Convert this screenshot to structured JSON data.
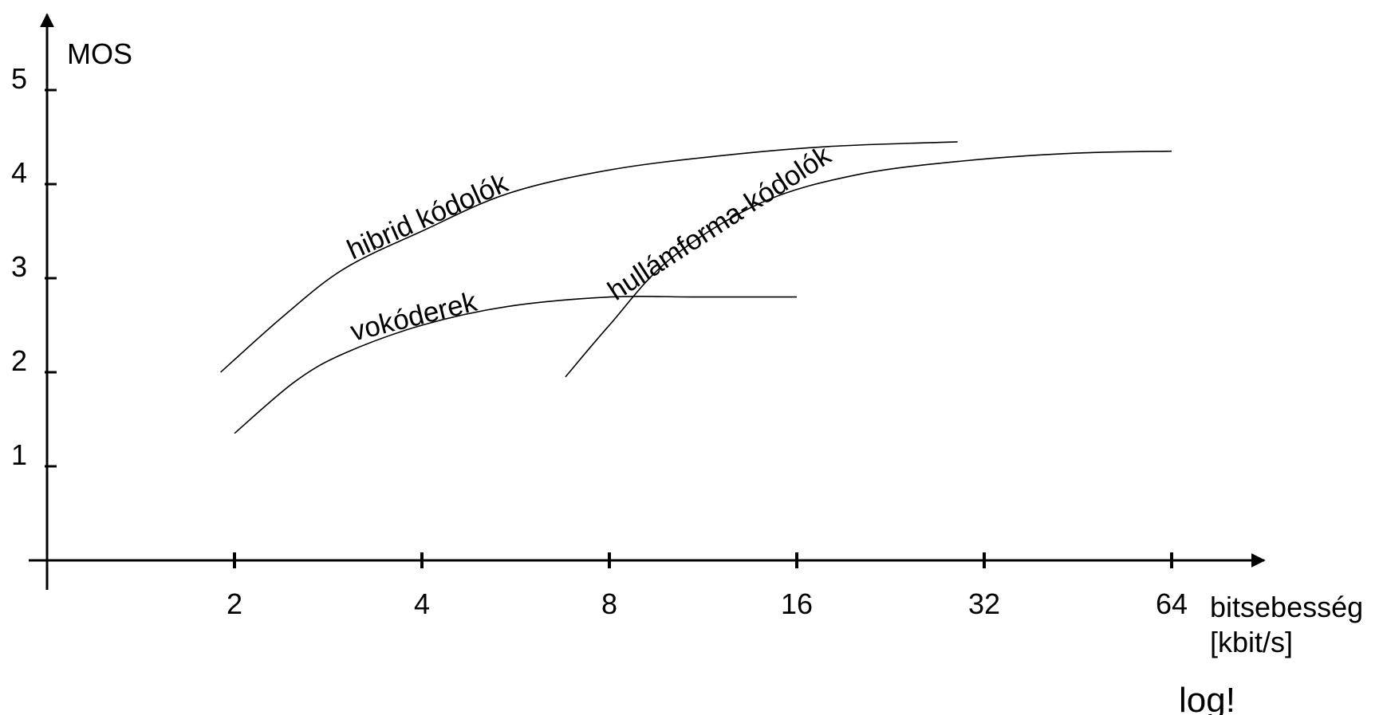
{
  "chart_data": {
    "type": "line",
    "ylabel": "MOS",
    "xlabel_line1": "bitsebesség",
    "xlabel_line2": "[kbit/s]",
    "note": "log!",
    "x_scale": "log2",
    "x_ticks": [
      2,
      4,
      8,
      16,
      32,
      64
    ],
    "y_ticks": [
      1,
      2,
      3,
      4,
      5
    ],
    "xlim": [
      1,
      90
    ],
    "ylim": [
      0,
      5.6
    ],
    "grid": false,
    "colors": {
      "line": "#000000",
      "axis": "#000000"
    },
    "series": [
      {
        "name": "hibrid kódolók",
        "x": [
          1.9,
          2.4,
          3.0,
          4.0,
          5.5,
          8.0,
          12.0,
          18.0,
          29.0
        ],
        "y": [
          2.0,
          2.6,
          3.1,
          3.5,
          3.9,
          4.15,
          4.3,
          4.4,
          4.45
        ]
      },
      {
        "name": "vokóderek",
        "x": [
          2.0,
          2.5,
          3.0,
          4.0,
          5.5,
          8.0,
          11.0,
          16.0
        ],
        "y": [
          1.35,
          1.9,
          2.2,
          2.5,
          2.7,
          2.8,
          2.8,
          2.8
        ]
      },
      {
        "name": "hullámforma-kódolók",
        "x": [
          6.8,
          8.0,
          10.0,
          14.0,
          20.0,
          30.0,
          45.0,
          64.0
        ],
        "y": [
          1.95,
          2.5,
          3.2,
          3.8,
          4.1,
          4.25,
          4.33,
          4.35
        ]
      }
    ]
  }
}
